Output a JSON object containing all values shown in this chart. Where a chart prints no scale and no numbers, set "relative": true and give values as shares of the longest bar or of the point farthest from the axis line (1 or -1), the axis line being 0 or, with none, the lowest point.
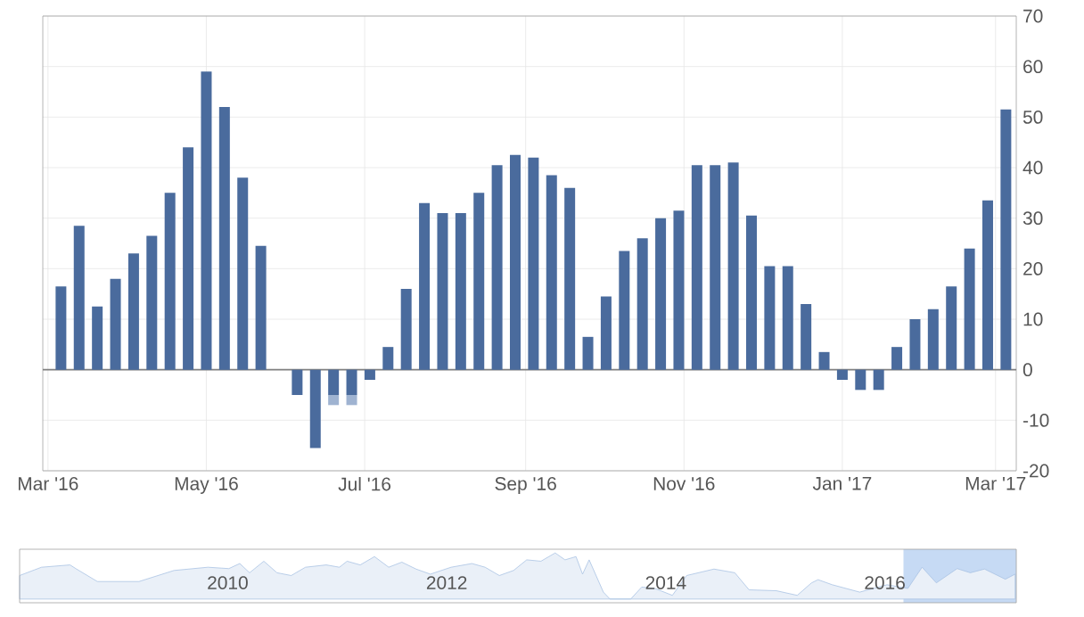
{
  "chart_data": [
    {
      "type": "bar",
      "stacked": true,
      "grid": true,
      "x": [
        "2016-03-06",
        "2016-03-13",
        "2016-03-20",
        "2016-03-27",
        "2016-04-03",
        "2016-04-10",
        "2016-04-17",
        "2016-04-24",
        "2016-05-01",
        "2016-05-08",
        "2016-05-15",
        "2016-05-22",
        "2016-05-29",
        "2016-06-05",
        "2016-06-12",
        "2016-06-19",
        "2016-06-26",
        "2016-07-03",
        "2016-07-10",
        "2016-07-17",
        "2016-07-24",
        "2016-07-31",
        "2016-08-07",
        "2016-08-14",
        "2016-08-21",
        "2016-08-28",
        "2016-09-04",
        "2016-09-11",
        "2016-09-18",
        "2016-09-25",
        "2016-10-02",
        "2016-10-09",
        "2016-10-16",
        "2016-10-23",
        "2016-10-30",
        "2016-11-06",
        "2016-11-13",
        "2016-11-20",
        "2016-11-27",
        "2016-12-04",
        "2016-12-11",
        "2016-12-18",
        "2016-12-25",
        "2017-01-01",
        "2017-01-08",
        "2017-01-15",
        "2017-01-22",
        "2017-01-29",
        "2017-02-05",
        "2017-02-12",
        "2017-02-19",
        "2017-02-26",
        "2017-03-05"
      ],
      "series": [
        {
          "color": "#4a6b9d",
          "values": [
            16.5,
            28.5,
            12.5,
            18,
            23,
            26.5,
            35,
            44,
            59,
            52,
            38,
            24.5,
            null,
            -5,
            -15.5,
            -5,
            -5,
            -2,
            4.5,
            16,
            33,
            31,
            31,
            35,
            40.5,
            42.5,
            42,
            38.5,
            36,
            6.5,
            14.5,
            23.5,
            26,
            30,
            31.5,
            40.5,
            40.5,
            41,
            30.5,
            20.5,
            20.5,
            13,
            3.5,
            -2,
            -4,
            -4,
            4.5,
            10,
            12,
            16.5,
            24,
            33.5,
            51.5
          ]
        },
        {
          "color": "#9fb3d1",
          "values": [
            null,
            null,
            null,
            null,
            null,
            null,
            null,
            null,
            null,
            null,
            null,
            null,
            null,
            null,
            null,
            -2,
            -2,
            null,
            null,
            null,
            null,
            null,
            null,
            null,
            null,
            null,
            null,
            null,
            null,
            null,
            null,
            null,
            null,
            null,
            null,
            null,
            null,
            null,
            null,
            null,
            null,
            null,
            null,
            null,
            null,
            null,
            null,
            null,
            null,
            null,
            null,
            null,
            null
          ]
        }
      ],
      "xlim": [
        "2016-02-28",
        "2017-03-09"
      ],
      "xticks": [
        {
          "value": "2016-03-01",
          "label": "Mar '16"
        },
        {
          "value": "2016-05-01",
          "label": "May '16"
        },
        {
          "value": "2016-07-01",
          "label": "Jul '16"
        },
        {
          "value": "2016-09-01",
          "label": "Sep '16"
        },
        {
          "value": "2016-11-01",
          "label": "Nov '16"
        },
        {
          "value": "2017-01-01",
          "label": "Jan '17"
        },
        {
          "value": "2017-03-01",
          "label": "Mar '17"
        }
      ],
      "ylim": [
        -20,
        70
      ],
      "yticks": [
        -20,
        -10,
        0,
        10,
        20,
        30,
        40,
        50,
        60,
        70
      ],
      "ref_lines": [
        {
          "axis": "y",
          "value": 0,
          "color": "#808080"
        }
      ]
    },
    {
      "type": "area",
      "relative": true,
      "tick_labels": "x",
      "color": "#a9c3e3",
      "x": [
        2008.1,
        2008.3,
        2008.56,
        2008.62,
        2008.81,
        2009.19,
        2009.51,
        2009.82,
        2010.01,
        2010.11,
        2010.2,
        2010.33,
        2010.45,
        2010.58,
        2010.71,
        2010.9,
        2011.02,
        2011.09,
        2011.21,
        2011.34,
        2011.47,
        2011.59,
        2011.72,
        2011.85,
        2012.04,
        2012.23,
        2012.35,
        2012.48,
        2012.61,
        2012.73,
        2012.86,
        2012.99,
        2013.08,
        2013.18,
        2013.24,
        2013.3,
        2013.43,
        2013.49,
        2013.68,
        2013.78,
        2013.9,
        2014.06,
        2014.19,
        2014.44,
        2014.63,
        2014.76,
        2015.01,
        2015.2,
        2015.33,
        2015.39,
        2015.52,
        2015.77,
        2016.02,
        2016.21,
        2016.34,
        2016.47,
        2016.66,
        2016.78,
        2016.91,
        2017.1,
        2017.19
      ],
      "values": [
        0.51,
        0.69,
        0.74,
        0.65,
        0.38,
        0.38,
        0.62,
        0.69,
        0.66,
        0.77,
        0.57,
        0.82,
        0.57,
        0.51,
        0.69,
        0.74,
        0.69,
        0.82,
        0.74,
        0.92,
        0.69,
        0.8,
        0.65,
        0.54,
        0.69,
        0.77,
        0.69,
        0.51,
        0.62,
        0.85,
        0.82,
        1,
        0.85,
        0.92,
        0.54,
        0.85,
        0.15,
        0,
        0,
        0.26,
        0.23,
        0.08,
        0.51,
        0.65,
        0.57,
        0.2,
        0.18,
        0.08,
        0.35,
        0.42,
        0.31,
        0.15,
        0.31,
        0.23,
        0.69,
        0.35,
        0.66,
        0.57,
        0.65,
        0.43,
        0.54
      ],
      "xlim": [
        2008.1,
        2017.2
      ],
      "xticks": [
        2010,
        2012,
        2014,
        2016
      ],
      "bands": [
        {
          "axis": "x",
          "from": 2016.17,
          "to": 2017.2,
          "color": "#c6daf4"
        }
      ]
    }
  ]
}
